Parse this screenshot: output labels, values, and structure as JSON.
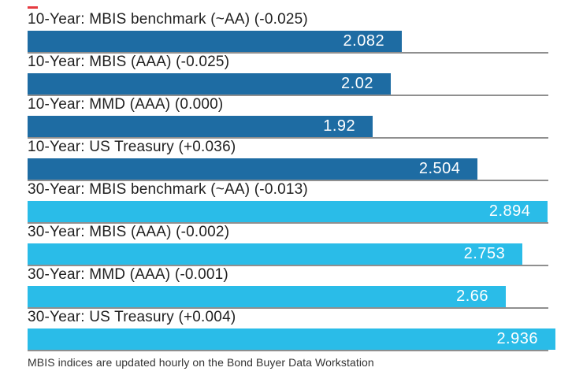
{
  "chart_data": {
    "type": "bar",
    "orientation": "horizontal",
    "title": "",
    "xlabel": "",
    "ylabel": "",
    "xlim": [
      0,
      2.936
    ],
    "max_value": 2.936,
    "legend": "none",
    "grid": "row-separator-lines",
    "categories": [
      "10-Year: MBIS benchmark (~AA) (-0.025)",
      "10-Year: MBIS (AAA) (-0.025)",
      "10-Year: MMD (AAA) (0.000)",
      "10-Year: US Treasury (+0.036)",
      "30-Year: MBIS benchmark (~AA) (-0.013)",
      "30-Year: MBIS (AAA) (-0.002)",
      "30-Year: MMD (AAA) (-0.001)",
      "30-Year: US Treasury (+0.004)"
    ],
    "values": [
      2.082,
      2.02,
      1.92,
      2.504,
      2.894,
      2.753,
      2.66,
      2.936
    ],
    "rows": [
      {
        "label": "10-Year: MBIS benchmark (~AA) (-0.025)",
        "value": 2.082,
        "value_label": "2.082",
        "group": "10-year"
      },
      {
        "label": "10-Year: MBIS (AAA) (-0.025)",
        "value": 2.02,
        "value_label": "2.02",
        "group": "10-year"
      },
      {
        "label": "10-Year: MMD (AAA) (0.000)",
        "value": 1.92,
        "value_label": "1.92",
        "group": "10-year"
      },
      {
        "label": "10-Year: US Treasury (+0.036)",
        "value": 2.504,
        "value_label": "2.504",
        "group": "10-year"
      },
      {
        "label": "30-Year: MBIS benchmark (~AA) (-0.013)",
        "value": 2.894,
        "value_label": "2.894",
        "group": "30-year"
      },
      {
        "label": "30-Year: MBIS (AAA) (-0.002)",
        "value": 2.753,
        "value_label": "2.753",
        "group": "30-year"
      },
      {
        "label": "30-Year: MMD (AAA) (-0.001)",
        "value": 2.66,
        "value_label": "2.66",
        "group": "30-year"
      },
      {
        "label": "30-Year: US Treasury (+0.004)",
        "value": 2.936,
        "value_label": "2.936",
        "group": "30-year"
      }
    ],
    "colors": {
      "ten_year_bar": "#1e6ca3",
      "thirty_year_bar": "#2abce8",
      "separator_line": "#8f8f8f",
      "label_text": "#1f1f1f",
      "value_text": "#ffffff",
      "accent_dash": "#e63a40"
    },
    "footnote": "MBIS indices are updated hourly on the Bond Buyer Data Workstation"
  }
}
